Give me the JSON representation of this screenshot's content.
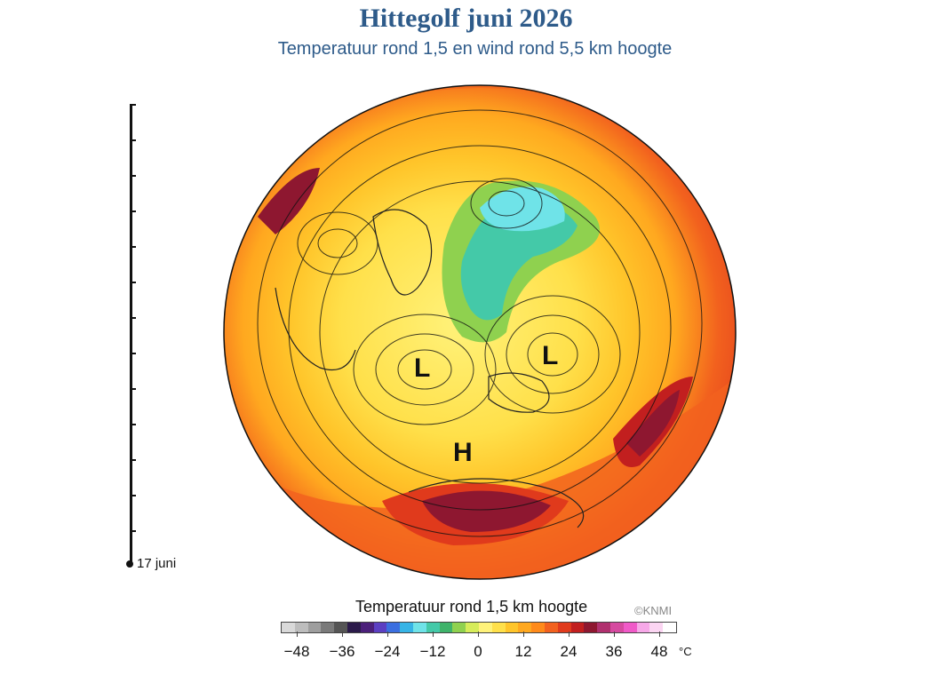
{
  "header": {
    "title": "Hittegolf juni 2026",
    "subtitle": "Temperatuur rond 1,5 en wind rond 5,5 km hoogte"
  },
  "timeline": {
    "date_label": "17 juni"
  },
  "map": {
    "pressure_marks": [
      {
        "id": "low-west",
        "label": "L"
      },
      {
        "id": "low-east",
        "label": "L"
      },
      {
        "id": "high-south",
        "label": "H"
      }
    ]
  },
  "colorbar": {
    "title": "Temperatuur rond 1,5 km hoogte",
    "credit": "©KNMI",
    "unit": "°C",
    "tick_labels": [
      "−48",
      "−36",
      "−24",
      "−12",
      "0",
      "12",
      "24",
      "36",
      "48"
    ],
    "colors": [
      "#d9d9d9",
      "#bdbdbd",
      "#9e9e9e",
      "#7a7a7a",
      "#555555",
      "#2b1a4a",
      "#4b1f7a",
      "#5b3fc2",
      "#3b6fe0",
      "#36b4e6",
      "#6fe3e8",
      "#44c9a8",
      "#3fb36a",
      "#8fd14f",
      "#d6ec5a",
      "#fff27a",
      "#ffe04a",
      "#ffc52a",
      "#ffa81f",
      "#ff8a1a",
      "#f2611e",
      "#e03a1c",
      "#c21f1f",
      "#8e1730",
      "#b0306e",
      "#d64aa0",
      "#f05ac8",
      "#f7a8e8",
      "#fbd5f2",
      "#ffffff"
    ],
    "range": [
      -48,
      48
    ]
  }
}
